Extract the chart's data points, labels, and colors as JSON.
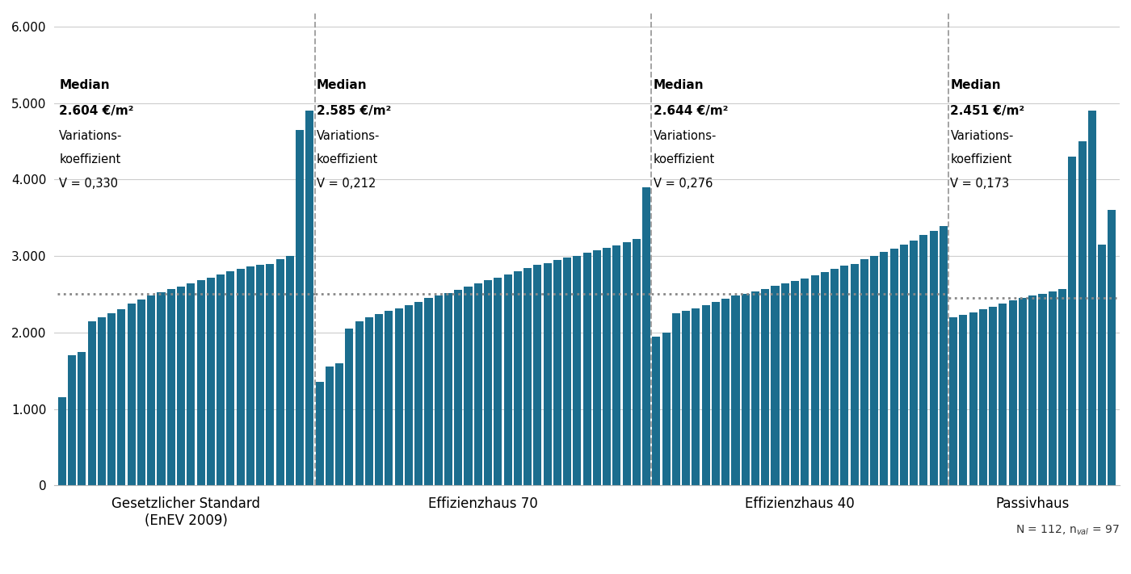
{
  "bar_color": "#1b6d8e",
  "background_color": "#ffffff",
  "ylim": [
    0,
    6200
  ],
  "yticks": [
    0,
    1000,
    2000,
    3000,
    4000,
    5000,
    6000
  ],
  "ytick_labels": [
    "0",
    "1.000",
    "2.000",
    "3.000",
    "4.000",
    "5.000",
    "6.000"
  ],
  "groups": [
    {
      "label": "Gesetzlicher Standard\n(EnEV 2009)",
      "median": 2604,
      "median_line": 2500,
      "variation_coeff": "0,330",
      "values": [
        1150,
        1700,
        1750,
        2150,
        2200,
        2250,
        2300,
        2380,
        2430,
        2480,
        2530,
        2570,
        2600,
        2640,
        2680,
        2720,
        2760,
        2800,
        2830,
        2860,
        2880,
        2900,
        2960,
        3000,
        4650,
        4900
      ]
    },
    {
      "label": "Effizienzhaus 70",
      "median": 2585,
      "median_line": 2500,
      "variation_coeff": "0,212",
      "values": [
        1350,
        1550,
        1600,
        2050,
        2150,
        2200,
        2240,
        2280,
        2320,
        2360,
        2400,
        2450,
        2480,
        2520,
        2560,
        2600,
        2640,
        2680,
        2720,
        2760,
        2800,
        2840,
        2880,
        2910,
        2950,
        2980,
        3000,
        3040,
        3070,
        3110,
        3140,
        3180,
        3220,
        3900
      ]
    },
    {
      "label": "Effizienzhaus 40",
      "median": 2644,
      "median_line": 2500,
      "variation_coeff": "0,276",
      "values": [
        1950,
        2000,
        2250,
        2280,
        2320,
        2360,
        2400,
        2440,
        2480,
        2510,
        2540,
        2570,
        2610,
        2640,
        2670,
        2710,
        2750,
        2790,
        2830,
        2870,
        2900,
        2960,
        3000,
        3050,
        3100,
        3150,
        3200,
        3280,
        3330,
        3390
      ]
    },
    {
      "label": "Passivhaus",
      "median": 2451,
      "median_line": 2450,
      "variation_coeff": "0,173",
      "values": [
        2200,
        2230,
        2260,
        2300,
        2340,
        2380,
        2420,
        2450,
        2480,
        2510,
        2540,
        2570,
        4300,
        4500,
        4900,
        3150,
        3600
      ]
    }
  ],
  "separator_color": "#999999",
  "dotted_line_color": "#888888",
  "note_text": "N = 112, n$_{val}$ = 97"
}
